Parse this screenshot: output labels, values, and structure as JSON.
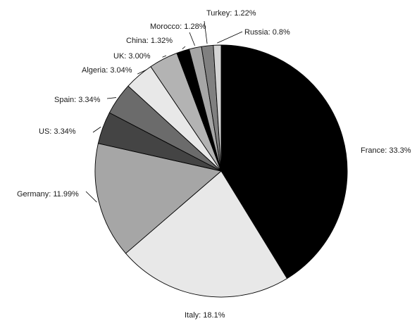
{
  "chart_data": {
    "type": "pie",
    "title": "",
    "slices": [
      {
        "label": "France",
        "value": 33.3,
        "display": "France: 33.3%",
        "color": "#000000"
      },
      {
        "label": "Italy",
        "value": 18.1,
        "display": "Italy: 18.1%",
        "color": "#e8e8e8"
      },
      {
        "label": "Germany",
        "value": 11.99,
        "display": "Germany: 11.99%",
        "color": "#a6a6a6"
      },
      {
        "label": "US",
        "value": 3.34,
        "display": "US: 3.34%",
        "color": "#444444"
      },
      {
        "label": "Spain",
        "value": 3.34,
        "display": "Spain: 3.34%",
        "color": "#6b6b6b"
      },
      {
        "label": "Algeria",
        "value": 3.04,
        "display": "Algeria: 3.04%",
        "color": "#e8e8e8"
      },
      {
        "label": "UK",
        "value": 3.0,
        "display": "UK: 3.00%",
        "color": "#b3b3b3"
      },
      {
        "label": "China",
        "value": 1.32,
        "display": "China: 1.32%",
        "color": "#000000"
      },
      {
        "label": "Morocco",
        "value": 1.28,
        "display": "Morocco: 1.28%",
        "color": "#a6a6a6"
      },
      {
        "label": "Turkey",
        "value": 1.22,
        "display": "Turkey: 1.22%",
        "color": "#808080"
      },
      {
        "label": "Russia",
        "value": 0.8,
        "display": "Russia: 0.8%",
        "color": "#d4d4d4"
      }
    ],
    "start": "12 o'clock",
    "direction": "clockwise"
  }
}
